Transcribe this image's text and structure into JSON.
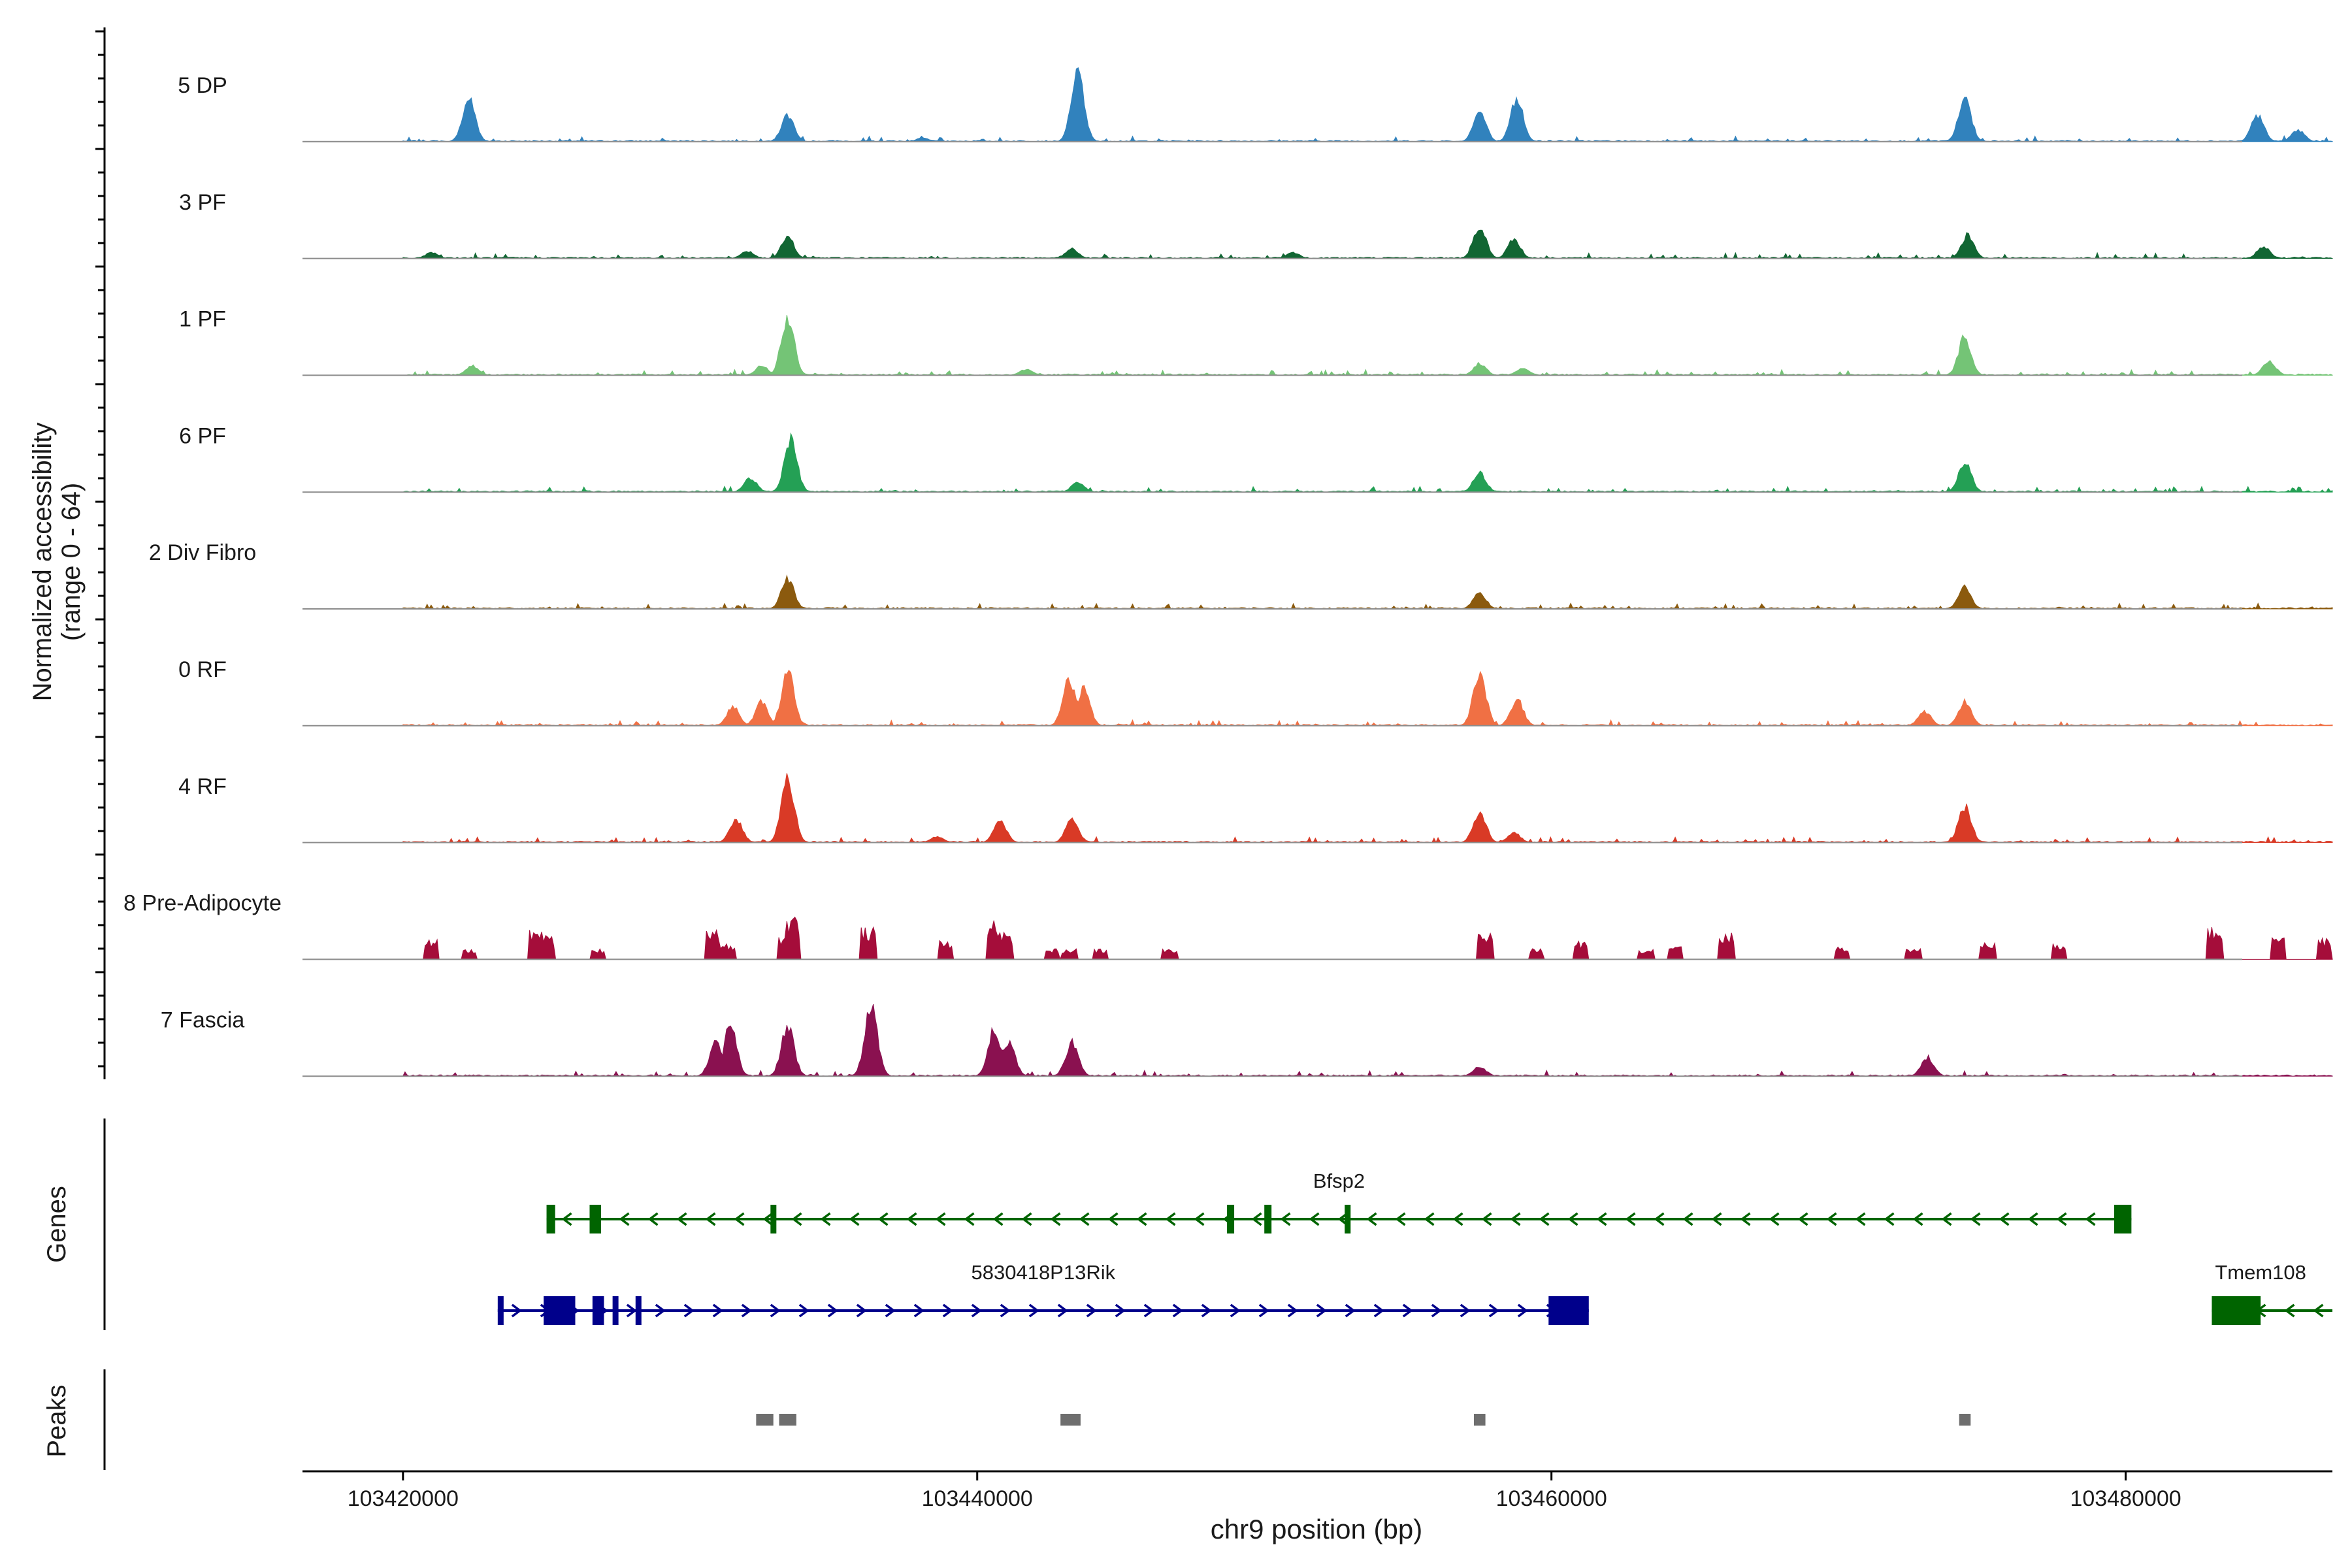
{
  "chart_data": {
    "type": "area",
    "title": "",
    "xlabel": "chr9 position (bp)",
    "ylabel_line1": "Normalized accessibility",
    "ylabel_line2": "(range 0 - 64)",
    "ylim": [
      0,
      64
    ],
    "xlim": [
      103416500,
      103487200
    ],
    "x_ticks": [
      103420000,
      103440000,
      103460000,
      103480000
    ],
    "x_tick_labels": [
      "103420000",
      "103440000",
      "103460000",
      "103480000"
    ],
    "genes_label": "Genes",
    "peaks_label": "Peaks",
    "series": [
      {
        "name": "5 DP",
        "color": "#3182bd",
        "sparse": false,
        "peaks": [
          [
            103422300,
            36
          ],
          [
            103433400,
            22
          ],
          [
            103438100,
            3
          ],
          [
            103443500,
            60
          ],
          [
            103457500,
            25
          ],
          [
            103458800,
            36
          ],
          [
            103474400,
            36
          ],
          [
            103484600,
            22
          ],
          [
            103486000,
            10
          ]
        ]
      },
      {
        "name": "3 PF",
        "color": "#116633",
        "sparse": false,
        "peaks": [
          [
            103421000,
            5
          ],
          [
            103432000,
            6
          ],
          [
            103433400,
            18
          ],
          [
            103443300,
            8
          ],
          [
            103451000,
            5
          ],
          [
            103457500,
            28
          ],
          [
            103458700,
            16
          ],
          [
            103474500,
            20
          ],
          [
            103484800,
            10
          ]
        ]
      },
      {
        "name": "1 PF",
        "color": "#74c476",
        "sparse": false,
        "peaks": [
          [
            103422400,
            8
          ],
          [
            103432500,
            8
          ],
          [
            103433400,
            50
          ],
          [
            103441700,
            5
          ],
          [
            103457500,
            10
          ],
          [
            103459000,
            6
          ],
          [
            103474400,
            32
          ],
          [
            103485000,
            12
          ]
        ]
      },
      {
        "name": "6 PF",
        "color": "#24a055",
        "sparse": false,
        "peaks": [
          [
            103432100,
            12
          ],
          [
            103433500,
            45
          ],
          [
            103443500,
            8
          ],
          [
            103457500,
            16
          ],
          [
            103474400,
            26
          ]
        ]
      },
      {
        "name": "2 Div Fibro",
        "color": "#8b5a0e",
        "sparse": false,
        "peaks": [
          [
            103433400,
            25
          ],
          [
            103457500,
            14
          ],
          [
            103474400,
            18
          ]
        ]
      },
      {
        "name": "0 RF",
        "color": "#f07044",
        "sparse": false,
        "peaks": [
          [
            103431500,
            16
          ],
          [
            103432500,
            20
          ],
          [
            103433400,
            45
          ],
          [
            103443200,
            38
          ],
          [
            103443700,
            32
          ],
          [
            103457500,
            45
          ],
          [
            103458800,
            22
          ],
          [
            103473000,
            12
          ],
          [
            103474400,
            20
          ]
        ]
      },
      {
        "name": "4 RF",
        "color": "#d93a26",
        "sparse": false,
        "peaks": [
          [
            103431600,
            20
          ],
          [
            103433400,
            55
          ],
          [
            103438600,
            5
          ],
          [
            103440800,
            18
          ],
          [
            103443300,
            20
          ],
          [
            103457500,
            26
          ],
          [
            103458700,
            8
          ],
          [
            103474400,
            30
          ]
        ]
      },
      {
        "name": "8 Pre-Adipocyte",
        "color": "#a50d3a",
        "sparse": true,
        "peaks": [
          [
            103421000,
            15
          ],
          [
            103422300,
            8
          ],
          [
            103424600,
            22
          ],
          [
            103425000,
            18
          ],
          [
            103426800,
            8
          ],
          [
            103430800,
            25
          ],
          [
            103431300,
            12
          ],
          [
            103433300,
            18
          ],
          [
            103433600,
            33
          ],
          [
            103436200,
            24
          ],
          [
            103438900,
            14
          ],
          [
            103440600,
            30
          ],
          [
            103441000,
            20
          ],
          [
            103442600,
            8
          ],
          [
            103443200,
            8
          ],
          [
            103444300,
            8
          ],
          [
            103446700,
            8
          ],
          [
            103457700,
            20
          ],
          [
            103459500,
            8
          ],
          [
            103461000,
            14
          ],
          [
            103463300,
            8
          ],
          [
            103464300,
            12
          ],
          [
            103466100,
            20
          ],
          [
            103470100,
            10
          ],
          [
            103472600,
            8
          ],
          [
            103475200,
            14
          ],
          [
            103477700,
            12
          ],
          [
            103483100,
            24
          ],
          [
            103485300,
            20
          ],
          [
            103486900,
            16
          ]
        ]
      },
      {
        "name": "7 Fascia",
        "color": "#8a1150",
        "sparse": false,
        "peaks": [
          [
            103430900,
            28
          ],
          [
            103431400,
            42
          ],
          [
            103433400,
            42
          ],
          [
            103436300,
            58
          ],
          [
            103440600,
            40
          ],
          [
            103441100,
            28
          ],
          [
            103443300,
            28
          ],
          [
            103457500,
            8
          ],
          [
            103473100,
            16
          ]
        ]
      }
    ],
    "genes": [
      {
        "name": "Bfsp2",
        "color": "#006400",
        "strand": "-",
        "start": 103425000,
        "end": 103480200,
        "row": 1,
        "exons": [
          [
            103425000,
            103425300
          ],
          [
            103426500,
            103426900
          ],
          [
            103432800,
            103432950
          ],
          [
            103448700,
            103448950
          ],
          [
            103450000,
            103450250
          ],
          [
            103452800,
            103452950
          ],
          [
            103479600,
            103480200
          ]
        ]
      },
      {
        "name": "5830418P13Rik",
        "color": "#00008b",
        "strand": "+",
        "start": 103423300,
        "end": 103461300,
        "row": 2,
        "exons": [
          [
            103423300,
            103423400
          ],
          [
            103424900,
            103426000
          ],
          [
            103426600,
            103427000
          ],
          [
            103427300,
            103427500
          ],
          [
            103428100,
            103428200
          ],
          [
            103459900,
            103461300
          ]
        ]
      },
      {
        "name": "Tmem108",
        "color": "#006400",
        "strand": "-",
        "start": 103483000,
        "end": 103487200,
        "row": 2,
        "exons": [
          [
            103483000,
            103484700
          ]
        ]
      }
    ],
    "peak_regions": [
      [
        103432300,
        103432900
      ],
      [
        103433100,
        103433700
      ],
      [
        103442900,
        103443600
      ],
      [
        103457300,
        103457700
      ],
      [
        103474200,
        103474600
      ]
    ]
  }
}
